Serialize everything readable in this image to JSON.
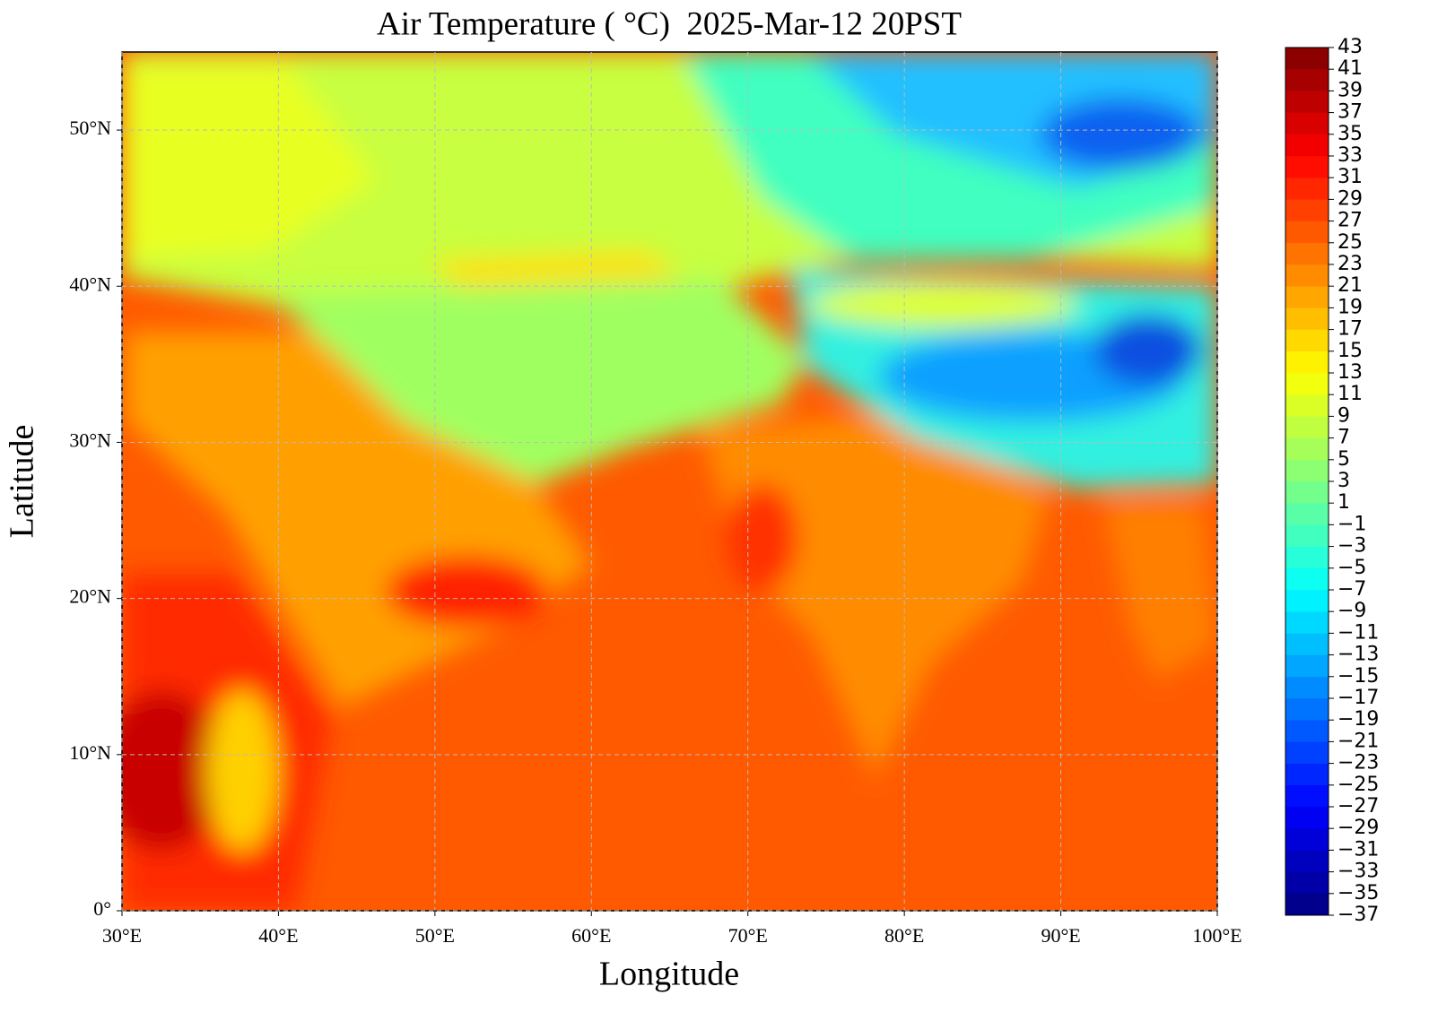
{
  "chart_data": {
    "type": "contour-map",
    "title": "Air Temperature ( °C)  2025-Mar-12 20PST",
    "x_label": "Longitude",
    "y_label": "Latitude",
    "xlim": [
      30,
      100
    ],
    "ylim": [
      0,
      55
    ],
    "xticks": [
      {
        "value": 30,
        "label": "30°E"
      },
      {
        "value": 40,
        "label": "40°E"
      },
      {
        "value": 50,
        "label": "50°E"
      },
      {
        "value": 60,
        "label": "60°E"
      },
      {
        "value": 70,
        "label": "70°E"
      },
      {
        "value": 80,
        "label": "80°E"
      },
      {
        "value": 90,
        "label": "90°E"
      },
      {
        "value": 100,
        "label": "100°E"
      }
    ],
    "yticks": [
      {
        "value": 0,
        "label": "0°"
      },
      {
        "value": 10,
        "label": "10°N"
      },
      {
        "value": 20,
        "label": "20°N"
      },
      {
        "value": 30,
        "label": "30°N"
      },
      {
        "value": 40,
        "label": "40°N"
      },
      {
        "value": 50,
        "label": "50°N"
      }
    ],
    "grid": true,
    "colorbar": {
      "colormap": "jet",
      "lim": [
        -37,
        43
      ],
      "ticks": [
        {
          "value": -37,
          "label": "−37"
        },
        {
          "value": -35,
          "label": "−35"
        },
        {
          "value": -33,
          "label": "−33"
        },
        {
          "value": -31,
          "label": "−31"
        },
        {
          "value": -29,
          "label": "−29"
        },
        {
          "value": -27,
          "label": "−27"
        },
        {
          "value": -25,
          "label": "−25"
        },
        {
          "value": -23,
          "label": "−23"
        },
        {
          "value": -21,
          "label": "−21"
        },
        {
          "value": -19,
          "label": "−19"
        },
        {
          "value": -17,
          "label": "−17"
        },
        {
          "value": -15,
          "label": "−15"
        },
        {
          "value": -13,
          "label": "−13"
        },
        {
          "value": -11,
          "label": "−11"
        },
        {
          "value": -9,
          "label": "−9"
        },
        {
          "value": -7,
          "label": "−7"
        },
        {
          "value": -5,
          "label": "−5"
        },
        {
          "value": -3,
          "label": "−3"
        },
        {
          "value": -1,
          "label": "−1"
        },
        1,
        3,
        5,
        7,
        9,
        11,
        13,
        15,
        17,
        19,
        21,
        23,
        25,
        27,
        29,
        31,
        33,
        35,
        37,
        39,
        41,
        43
      ]
    }
  }
}
